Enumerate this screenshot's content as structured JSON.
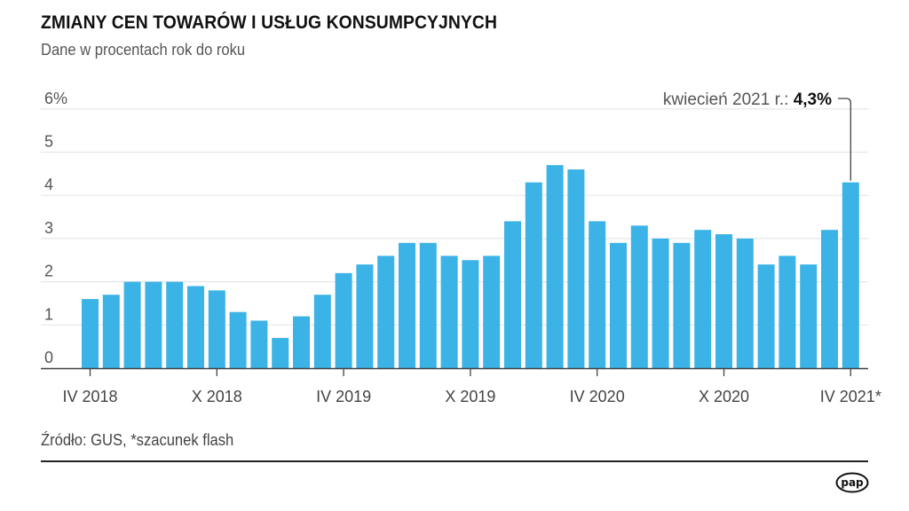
{
  "header": {
    "title": "ZMIANY CEN TOWARÓW I USŁUG KONSUMPCYJNYCH",
    "subtitle": "Dane w procentach rok do roku"
  },
  "footer": {
    "source": "Źródło: GUS, *szacunek flash",
    "logo_text": "pap",
    "logo_icon": "pap-logo-icon"
  },
  "colors": {
    "bar": "#3bb3e6",
    "grid": "#e3e8ec",
    "axis": "#444444",
    "rule": "#222222"
  },
  "chart_data": {
    "type": "bar",
    "title": "ZMIANY CEN TOWARÓW I USŁUG KONSUMPCYJNYCH",
    "subtitle": "Dane w procentach rok do roku",
    "xlabel": "",
    "ylabel": "",
    "ylim": [
      0,
      6
    ],
    "yticks": [
      0,
      1,
      2,
      3,
      4,
      5,
      6
    ],
    "ytick_labels": [
      "0",
      "1",
      "2",
      "3",
      "4",
      "5",
      "6%"
    ],
    "grid": true,
    "categories": [
      "IV 2018",
      "V 2018",
      "VI 2018",
      "VII 2018",
      "VIII 2018",
      "IX 2018",
      "X 2018",
      "XI 2018",
      "XII 2018",
      "I 2019",
      "II 2019",
      "III 2019",
      "IV 2019",
      "V 2019",
      "VI 2019",
      "VII 2019",
      "VIII 2019",
      "IX 2019",
      "X 2019",
      "XI 2019",
      "XII 2019",
      "I 2020",
      "II 2020",
      "III 2020",
      "IV 2020",
      "V 2020",
      "VI 2020",
      "VII 2020",
      "VIII 2020",
      "IX 2020",
      "X 2020",
      "XI 2020",
      "XII 2020",
      "I 2021",
      "II 2021",
      "III 2021",
      "IV 2021"
    ],
    "values": [
      1.6,
      1.7,
      2.0,
      2.0,
      2.0,
      1.9,
      1.8,
      1.3,
      1.1,
      0.7,
      1.2,
      1.7,
      2.2,
      2.4,
      2.6,
      2.9,
      2.9,
      2.6,
      2.5,
      2.6,
      3.4,
      4.3,
      4.7,
      4.6,
      3.4,
      2.9,
      3.3,
      3.0,
      2.9,
      3.2,
      3.1,
      3.0,
      2.4,
      2.6,
      2.4,
      3.2,
      4.3
    ],
    "xtick_labels": [
      {
        "index": 0,
        "label": "IV 2018"
      },
      {
        "index": 6,
        "label": "X 2018"
      },
      {
        "index": 12,
        "label": "IV 2019"
      },
      {
        "index": 18,
        "label": "X 2019"
      },
      {
        "index": 24,
        "label": "IV 2020"
      },
      {
        "index": 30,
        "label": "X 2020"
      },
      {
        "index": 36,
        "label": "IV 2021*"
      }
    ],
    "annotation": {
      "index": 36,
      "prefix": "kwiecień 2021 r.: ",
      "value_label": "4,3%"
    }
  }
}
